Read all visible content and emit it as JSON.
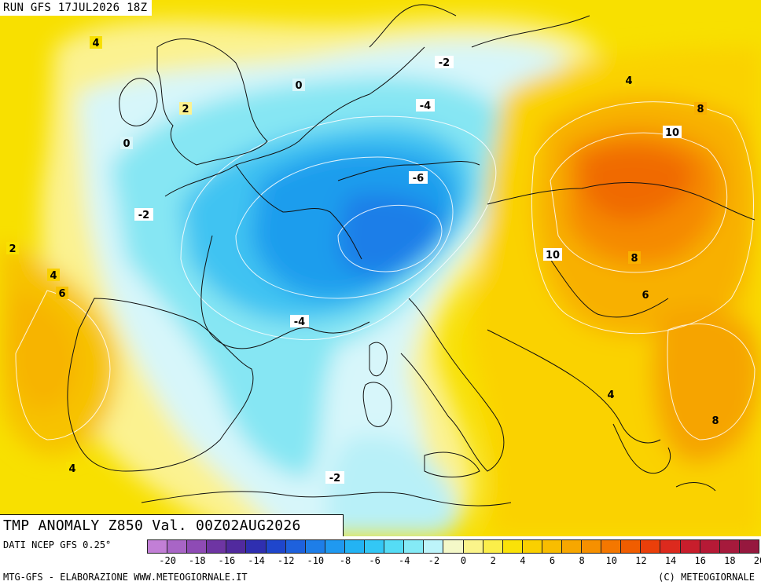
{
  "header": {
    "run_label": "RUN GFS 17JUL2026 18Z"
  },
  "title": "TMP ANOMALY Z850 Val. 00Z02AUG2026",
  "source": "DATI NCEP GFS 0.25°",
  "credit_left": "MTG-GFS - ELABORAZIONE WWW.METEOGIORNALE.IT",
  "credit_right": "(C) METEOGIORNALE",
  "colorbar": {
    "colors": [
      "#c27fd6",
      "#a865c6",
      "#8e4bb5",
      "#6e35a3",
      "#512a9e",
      "#2f2fb0",
      "#1f46cc",
      "#1e61dd",
      "#1e7ee8",
      "#1f99f0",
      "#23b3f3",
      "#33c7f5",
      "#55dcf5",
      "#84eaf6",
      "#bdf4fa",
      "#f4f8c8",
      "#fbf48a",
      "#fbee4a",
      "#fae208",
      "#fad000",
      "#f8bd00",
      "#f7a700",
      "#f69000",
      "#f47700",
      "#f05d00",
      "#ea3f0a",
      "#dc2a1e",
      "#c81e2c",
      "#b61a36",
      "#a61a3c",
      "#96183e"
    ],
    "tick_labels": [
      "-20",
      "-18",
      "-16",
      "-14",
      "-12",
      "-10",
      "-8",
      "-6",
      "-4",
      "-2",
      "0",
      "2",
      "4",
      "6",
      "8",
      "10",
      "12",
      "14",
      "16",
      "18",
      "20"
    ]
  },
  "contour_labels": [
    "4",
    "2",
    "0",
    "-2",
    "0",
    "-2",
    "-4",
    "-6",
    "-4",
    "-2",
    "4",
    "8",
    "10",
    "10",
    "8",
    "6",
    "4",
    "8",
    "2",
    "4",
    "6",
    "4"
  ]
}
